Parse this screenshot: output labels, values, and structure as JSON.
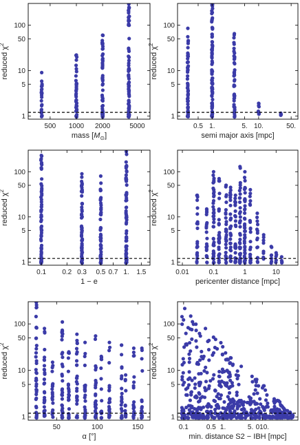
{
  "figure": {
    "marker_color": "#3b3ba8",
    "ref_line_style": "dashed"
  },
  "chart_data": [
    {
      "id": "mass",
      "type": "scatter",
      "xscale": "log",
      "yscale": "log",
      "xlim": [
        280,
        7000
      ],
      "ylim": [
        0.85,
        300
      ],
      "xlabel": "mass [",
      "xlabel_math": "M",
      "xlabel_sub": "⊙",
      "xlabel_tail": "]",
      "ylabel": "reduced χ",
      "ylabel_sup": "2",
      "xticks": [
        {
          "v": 500,
          "label": "500"
        },
        {
          "v": 1000,
          "label": "1000"
        },
        {
          "v": 2000,
          "label": "2000"
        },
        {
          "v": 5000,
          "label": "5000"
        }
      ],
      "yticks": [
        {
          "v": 1,
          "label": "1"
        },
        {
          "v": 5,
          "label": "5"
        },
        {
          "v": 10,
          "label": "10"
        },
        {
          "v": 50,
          "label": "50"
        },
        {
          "v": 100,
          "label": "100"
        }
      ],
      "ref_y": 1.2,
      "columns": [
        {
          "x": 400,
          "ymin": 0.95,
          "ymax": 9,
          "n": 22
        },
        {
          "x": 1000,
          "ymin": 0.95,
          "ymax": 22,
          "n": 40
        },
        {
          "x": 2000,
          "ymin": 0.95,
          "ymax": 60,
          "n": 60
        },
        {
          "x": 4000,
          "ymin": 0.95,
          "ymax": 290,
          "n": 85
        }
      ]
    },
    {
      "id": "semi-major-axis",
      "type": "scatter",
      "xscale": "log",
      "yscale": "log",
      "xlim": [
        0.18,
        70
      ],
      "ylim": [
        0.85,
        300
      ],
      "xlabel": "semi major axis [mpc]",
      "ylabel": "reduced χ",
      "ylabel_sup": "2",
      "xticks": [
        {
          "v": 0.5,
          "label": "0.5"
        },
        {
          "v": 1,
          "label": "1."
        },
        {
          "v": 5,
          "label": "5."
        },
        {
          "v": 10,
          "label": "10."
        },
        {
          "v": 50,
          "label": "50."
        }
      ],
      "yticks": [
        {
          "v": 1,
          "label": "1"
        },
        {
          "v": 5,
          "label": "5"
        },
        {
          "v": 10,
          "label": "10"
        },
        {
          "v": 50,
          "label": "50"
        },
        {
          "v": 100,
          "label": "100"
        }
      ],
      "ref_y": 1.2,
      "columns": [
        {
          "x": 0.3,
          "ymin": 0.95,
          "ymax": 85,
          "n": 55
        },
        {
          "x": 1.0,
          "ymin": 0.95,
          "ymax": 295,
          "n": 95
        },
        {
          "x": 3.0,
          "ymin": 0.95,
          "ymax": 65,
          "n": 45
        },
        {
          "x": 10,
          "ymin": 0.95,
          "ymax": 1.9,
          "n": 8
        },
        {
          "x": 30,
          "ymin": 0.95,
          "ymax": 1.15,
          "n": 3
        }
      ]
    },
    {
      "id": "eccentricity",
      "type": "scatter",
      "xscale": "log",
      "yscale": "log",
      "xlim": [
        0.07,
        1.9
      ],
      "ylim": [
        0.85,
        300
      ],
      "xlabel": "1 − e",
      "ylabel": "reduced χ",
      "ylabel_sup": "2",
      "xticks": [
        {
          "v": 0.1,
          "label": "0.1"
        },
        {
          "v": 0.2,
          "label": "0.2"
        },
        {
          "v": 0.3,
          "label": "0.3"
        },
        {
          "v": 0.5,
          "label": "0.5"
        },
        {
          "v": 0.7,
          "label": "0.7"
        },
        {
          "v": 1,
          "label": "1."
        },
        {
          "v": 1.5,
          "label": "1.5"
        }
      ],
      "yticks": [
        {
          "v": 1,
          "label": "1"
        },
        {
          "v": 5,
          "label": "5"
        },
        {
          "v": 10,
          "label": "10"
        },
        {
          "v": 50,
          "label": "50"
        },
        {
          "v": 100,
          "label": "100"
        }
      ],
      "ref_y": 1.2,
      "columns": [
        {
          "x": 0.1,
          "ymin": 0.95,
          "ymax": 230,
          "n": 70
        },
        {
          "x": 0.3,
          "ymin": 0.95,
          "ymax": 90,
          "n": 60
        },
        {
          "x": 0.5,
          "ymin": 0.95,
          "ymax": 80,
          "n": 55
        },
        {
          "x": 1.0,
          "ymin": 0.95,
          "ymax": 280,
          "n": 70
        }
      ]
    },
    {
      "id": "pericenter-distance",
      "type": "scatter",
      "xscale": "log",
      "yscale": "log",
      "xlim": [
        0.007,
        50
      ],
      "ylim": [
        0.85,
        300
      ],
      "xlabel": "pericenter distance [mpc]",
      "ylabel": "reduced χ",
      "ylabel_sup": "2",
      "xticks": [
        {
          "v": 0.01,
          "label": "0.01"
        },
        {
          "v": 0.1,
          "label": "0.1"
        },
        {
          "v": 1,
          "label": "1"
        },
        {
          "v": 10,
          "label": "10"
        }
      ],
      "yticks": [
        {
          "v": 1,
          "label": "1"
        },
        {
          "v": 5,
          "label": "5"
        },
        {
          "v": 10,
          "label": "10"
        },
        {
          "v": 50,
          "label": "50"
        },
        {
          "v": 100,
          "label": "100"
        }
      ],
      "ref_y": 1.2,
      "columns": [
        {
          "x": 0.03,
          "ymin": 0.95,
          "ymax": 30,
          "n": 20
        },
        {
          "x": 0.06,
          "ymin": 0.95,
          "ymax": 15,
          "n": 22
        },
        {
          "x": 0.1,
          "ymin": 0.95,
          "ymax": 100,
          "n": 45
        },
        {
          "x": 0.15,
          "ymin": 0.95,
          "ymax": 70,
          "n": 35
        },
        {
          "x": 0.25,
          "ymin": 0.95,
          "ymax": 50,
          "n": 30
        },
        {
          "x": 0.35,
          "ymin": 0.95,
          "ymax": 45,
          "n": 30
        },
        {
          "x": 0.5,
          "ymin": 0.95,
          "ymax": 30,
          "n": 28
        },
        {
          "x": 0.7,
          "ymin": 0.95,
          "ymax": 130,
          "n": 40
        },
        {
          "x": 1.0,
          "ymin": 0.95,
          "ymax": 100,
          "n": 40
        },
        {
          "x": 1.5,
          "ymin": 0.95,
          "ymax": 40,
          "n": 25
        },
        {
          "x": 2.5,
          "ymin": 0.95,
          "ymax": 12,
          "n": 14
        },
        {
          "x": 4.0,
          "ymin": 0.95,
          "ymax": 4,
          "n": 8
        },
        {
          "x": 7.0,
          "ymin": 0.95,
          "ymax": 2.2,
          "n": 6
        },
        {
          "x": 10,
          "ymin": 0.95,
          "ymax": 1.6,
          "n": 4
        },
        {
          "x": 15,
          "ymin": 0.95,
          "ymax": 1.3,
          "n": 3
        }
      ]
    },
    {
      "id": "alpha",
      "type": "scatter",
      "xscale": "linear",
      "yscale": "log",
      "xlim": [
        15,
        165
      ],
      "ylim": [
        0.85,
        300
      ],
      "xlabel": "α [°]",
      "ylabel": "reduced χ",
      "ylabel_sup": "2",
      "xticks": [
        {
          "v": 50,
          "label": "50"
        },
        {
          "v": 100,
          "label": "100"
        },
        {
          "v": 150,
          "label": "150"
        }
      ],
      "yticks": [
        {
          "v": 1,
          "label": "1"
        },
        {
          "v": 5,
          "label": "5"
        },
        {
          "v": 10,
          "label": "10"
        },
        {
          "v": 50,
          "label": "50"
        },
        {
          "v": 100,
          "label": "100"
        }
      ],
      "ref_y": 1.2,
      "columns": [
        {
          "x": 25,
          "ymin": 0.95,
          "ymax": 290,
          "n": 40
        },
        {
          "x": 35,
          "ymin": 0.95,
          "ymax": 80,
          "n": 30
        },
        {
          "x": 45,
          "ymin": 0.95,
          "ymax": 15,
          "n": 18
        },
        {
          "x": 57,
          "ymin": 0.95,
          "ymax": 110,
          "n": 35
        },
        {
          "x": 65,
          "ymin": 0.95,
          "ymax": 25,
          "n": 20
        },
        {
          "x": 75,
          "ymin": 0.95,
          "ymax": 60,
          "n": 28
        },
        {
          "x": 85,
          "ymin": 0.95,
          "ymax": 40,
          "n": 24
        },
        {
          "x": 98,
          "ymin": 0.95,
          "ymax": 55,
          "n": 26
        },
        {
          "x": 105,
          "ymin": 0.95,
          "ymax": 20,
          "n": 16
        },
        {
          "x": 115,
          "ymin": 0.95,
          "ymax": 40,
          "n": 22
        },
        {
          "x": 130,
          "ymin": 0.95,
          "ymax": 35,
          "n": 20
        },
        {
          "x": 135,
          "ymin": 0.95,
          "ymax": 8,
          "n": 10
        },
        {
          "x": 145,
          "ymin": 0.95,
          "ymax": 30,
          "n": 18
        },
        {
          "x": 155,
          "ymin": 0.95,
          "ymax": 30,
          "n": 16
        }
      ]
    },
    {
      "id": "min-distance",
      "type": "scatter",
      "xscale": "log",
      "yscale": "log",
      "xlim": [
        0.07,
        80
      ],
      "ylim": [
        0.85,
        300
      ],
      "xlabel": "min. distance S2 − IBH [mpc]",
      "ylabel": "reduced χ",
      "ylabel_sup": "2",
      "xticks": [
        {
          "v": 0.1,
          "label": "0.1"
        },
        {
          "v": 0.5,
          "label": "0.5"
        },
        {
          "v": 1,
          "label": "1."
        },
        {
          "v": 5,
          "label": "5."
        },
        {
          "v": 10,
          "label": "010."
        }
      ],
      "yticks": [
        {
          "v": 1,
          "label": "1"
        },
        {
          "v": 5,
          "label": "5"
        },
        {
          "v": 10,
          "label": "10"
        },
        {
          "v": 50,
          "label": "50"
        },
        {
          "v": 100,
          "label": "100"
        }
      ],
      "ref_y": 1.2,
      "cloud": {
        "n": 520,
        "xmin": 0.09,
        "xmax": 60,
        "ymin": 0.95,
        "ymax": 280
      }
    }
  ]
}
